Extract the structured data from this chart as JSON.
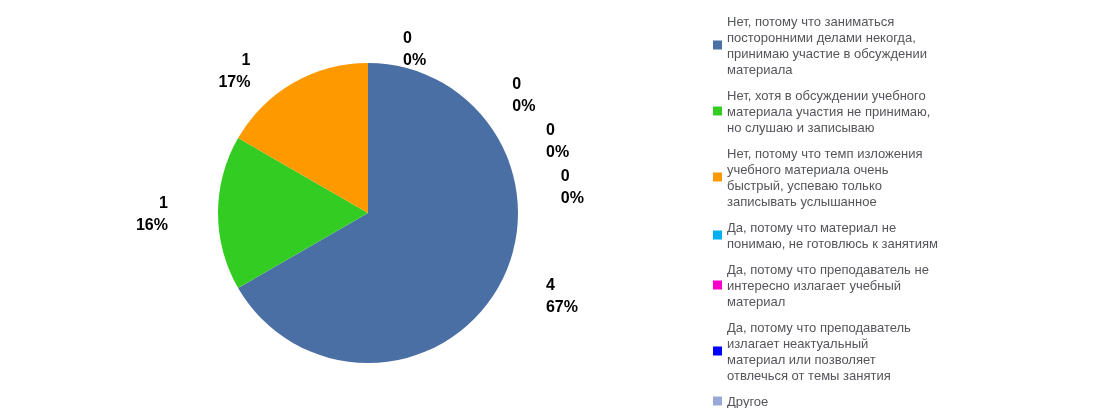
{
  "chart_data": {
    "type": "pie",
    "categories": [
      "Нет, потому что заниматься посторонними делами некогда, принимаю участие в обсуждении материала",
      "Нет, хотя в обсуждении учебного материала участия не принимаю, но слушаю и записываю",
      "Нет, потому что темп изложения учебного материала очень быстрый, успеваю только записывать услышанное",
      "Да, потому что материал не понимаю, не готовлюсь к занятиям",
      "Да, потому что преподаватель не интересно излагает учебный материал",
      "Да, потому что преподаватель излагает неактуальный материал или позволяет отвлечься от темы занятия",
      "Другое"
    ],
    "values": [
      4,
      1,
      1,
      0,
      0,
      0,
      0
    ],
    "value_labels": [
      "4\n67%",
      "1\n16%",
      "1\n17%",
      "0\n0%",
      "0\n0%",
      "0\n0%",
      "0\n0%"
    ],
    "colors": [
      "#4a6fa5",
      "#33cc22",
      "#ff9900",
      "#00b0f0",
      "#ff00cc",
      "#0000ff",
      "#99a8d8"
    ],
    "legend": "right"
  }
}
